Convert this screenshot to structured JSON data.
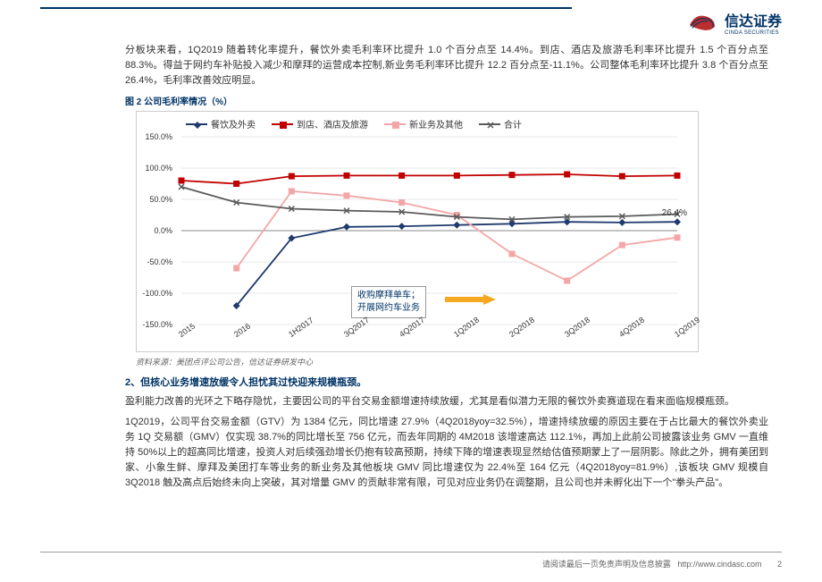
{
  "company": {
    "name_cn": "信达证券",
    "name_en": "CINDA SECURITIES"
  },
  "p1": "分板块来看，1Q2019 随着转化率提升，餐饮外卖毛利率环比提升 1.0 个百分点至 14.4%。到店、酒店及旅游毛利率环比提升 1.5 个百分点至 88.3%。得益于网约车补贴投入减少和摩拜的运营成本控制,新业务毛利率环比提升 12.2 百分点至-11.1%。公司整体毛利率环比提升 3.8 个百分点至 26.4%，毛利率改善效应明显。",
  "chart": {
    "title": "图 2 公司毛利率情况（%）",
    "type": "line",
    "categories": [
      "2015",
      "2016",
      "1H2017",
      "3Q2017",
      "4Q2017",
      "1Q2018",
      "2Q2018",
      "3Q2018",
      "4Q2018",
      "1Q2019"
    ],
    "ylim": [
      -150,
      150
    ],
    "ytick_step": 50,
    "series": [
      {
        "name": "餐饮及外卖",
        "color": "#1f3a6e",
        "marker": "diamond",
        "values": [
          null,
          -120,
          -12,
          6,
          7,
          9,
          11,
          14,
          13,
          14
        ]
      },
      {
        "name": "到店、酒店及旅游",
        "color": "#c00000",
        "marker": "square",
        "values": [
          80,
          75,
          87,
          88,
          88,
          88,
          89,
          90,
          87,
          88
        ]
      },
      {
        "name": "新业务及其他",
        "color": "#f4a6a6",
        "marker": "square",
        "values": [
          null,
          -60,
          63,
          56,
          45,
          25,
          -37,
          -80,
          -23,
          -11
        ]
      },
      {
        "name": "合计",
        "color": "#5a5a5a",
        "marker": "x",
        "values": [
          70,
          45,
          35,
          32,
          30,
          22,
          18,
          22,
          23,
          26.4
        ]
      }
    ],
    "last_value_label": "26.4%",
    "annotation": {
      "text1": "收购摩拜单车；",
      "text2": "开展网约车业务",
      "arrow_color": "#f6a821"
    },
    "grid_color": "#d0d0d0",
    "axis_color": "#888"
  },
  "source": "资料来源：美团点评公司公告，信达证券研发中心",
  "section2": "2、但核心业务增速放缓令人担忧其过快迎来规模瓶颈。",
  "p2": "盈利能力改善的光环之下略存隐忧，主要因公司的平台交易金额增速持续放缓，尤其是看似潜力无限的餐饮外卖赛道现在看来面临规模瓶颈。",
  "p3": "1Q2019，公司平台交易金额（GTV）为 1384 亿元，同比增速 27.9%（4Q2018yoy=32.5%），增速持续放缓的原因主要在于占比最大的餐饮外卖业务 1Q 交易额（GMV）仅实现 38.7%的同比增长至 756 亿元，而去年同期的 4M2018 该增速高达 112.1%，再加上此前公司披露该业务 GMV 一直维持 50%以上的超高同比增速，投资人对后续强劲增长仍抱有较高预期，持续下降的增速表现显然给估值预期蒙上了一层阴影。除此之外，拥有美团到家、小象生鲜、摩拜及美团打车等业务的新业务及其他板块 GMV 同比增速仅为 22.4%至 164 亿元（4Q2018yoy=81.9%）,该板块 GMV 规模自 3Q2018 触及高点后始终未向上突破，其对增量 GMV 的贡献非常有限，可见对应业务仍在调整期，且公司也并未孵化出下一个\"拳头产品\"。",
  "footer": {
    "text": "请阅读最后一页免责声明及信息披露",
    "url": "http://www.cindasc.com",
    "page": "2"
  }
}
